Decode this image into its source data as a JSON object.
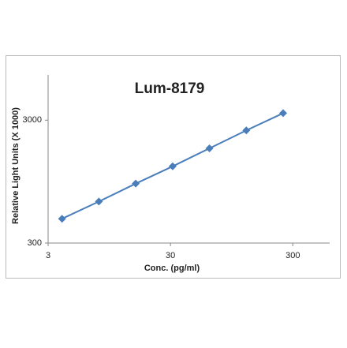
{
  "chart_data": {
    "type": "line",
    "title": "Lum-8179",
    "x_label": "Conc. (pg/ml)",
    "y_label": "Relative Light Units (X 1000)",
    "x": [
      3.9,
      7.8,
      15.6,
      31.25,
      62.5,
      125,
      250
    ],
    "series": [
      {
        "name": "Lum-8179",
        "color": "#4a7ebb",
        "values": [
          473,
          653,
          914,
          1263,
          1770,
          2478,
          3420
        ]
      }
    ],
    "xlim": [
      3,
      600
    ],
    "ylim": [
      300,
      7000
    ],
    "xticks": [
      3,
      30,
      300
    ],
    "yticks": [
      300,
      3000
    ],
    "x_log": true,
    "y_log": true,
    "grid": false
  }
}
